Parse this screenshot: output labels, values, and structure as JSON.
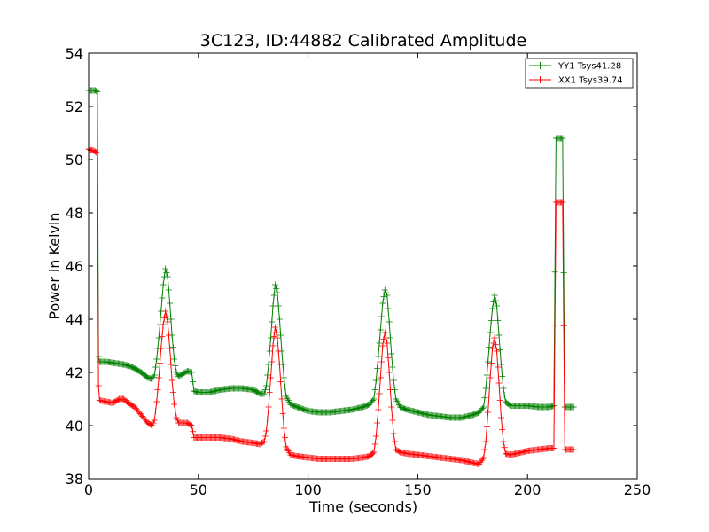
{
  "chart_data": {
    "type": "line",
    "title": "3C123, ID:44882 Calibrated Amplitude",
    "xlabel": "Time (seconds)",
    "ylabel": "Power in Kelvin",
    "xlim": [
      0,
      250
    ],
    "ylim": [
      38,
      54
    ],
    "xticks": [
      0,
      50,
      100,
      150,
      200,
      250
    ],
    "yticks": [
      38,
      40,
      42,
      44,
      46,
      48,
      50,
      52,
      54
    ],
    "grid": false,
    "legend_position": "top-right",
    "marker": "plus",
    "series": [
      {
        "name": "YY1 Tsys41.28",
        "color": "#008000",
        "points": [
          [
            0,
            52.6
          ],
          [
            1,
            52.6
          ],
          [
            2,
            52.6
          ],
          [
            3,
            52.6
          ],
          [
            4,
            52.55
          ],
          [
            4.5,
            42.6
          ],
          [
            5,
            42.4
          ],
          [
            8,
            42.4
          ],
          [
            12,
            42.35
          ],
          [
            16,
            42.3
          ],
          [
            20,
            42.2
          ],
          [
            24,
            42.0
          ],
          [
            27,
            41.8
          ],
          [
            29,
            41.75
          ],
          [
            30,
            41.9
          ],
          [
            31,
            42.5
          ],
          [
            32,
            43.3
          ],
          [
            33,
            44.3
          ],
          [
            34,
            45.3
          ],
          [
            35,
            45.9
          ],
          [
            36,
            45.6
          ],
          [
            37,
            44.6
          ],
          [
            38,
            43.4
          ],
          [
            39,
            42.5
          ],
          [
            40,
            42.0
          ],
          [
            41,
            41.85
          ],
          [
            43,
            41.95
          ],
          [
            45,
            42.05
          ],
          [
            47,
            42.0
          ],
          [
            48,
            41.3
          ],
          [
            50,
            41.25
          ],
          [
            55,
            41.25
          ],
          [
            60,
            41.35
          ],
          [
            65,
            41.4
          ],
          [
            70,
            41.4
          ],
          [
            75,
            41.35
          ],
          [
            78,
            41.2
          ],
          [
            80,
            41.2
          ],
          [
            81,
            41.5
          ],
          [
            82,
            42.3
          ],
          [
            83,
            43.3
          ],
          [
            84,
            44.5
          ],
          [
            85,
            45.3
          ],
          [
            86,
            45.0
          ],
          [
            87,
            44.0
          ],
          [
            88,
            42.8
          ],
          [
            89,
            41.8
          ],
          [
            90,
            41.1
          ],
          [
            92,
            40.8
          ],
          [
            95,
            40.7
          ],
          [
            100,
            40.55
          ],
          [
            105,
            40.5
          ],
          [
            110,
            40.5
          ],
          [
            115,
            40.55
          ],
          [
            120,
            40.6
          ],
          [
            125,
            40.7
          ],
          [
            128,
            40.8
          ],
          [
            130,
            41.0
          ],
          [
            131,
            41.7
          ],
          [
            132,
            42.6
          ],
          [
            133,
            43.6
          ],
          [
            134,
            44.6
          ],
          [
            135,
            45.1
          ],
          [
            136,
            44.9
          ],
          [
            137,
            43.9
          ],
          [
            138,
            42.7
          ],
          [
            139,
            41.7
          ],
          [
            140,
            41.0
          ],
          [
            142,
            40.7
          ],
          [
            145,
            40.6
          ],
          [
            150,
            40.5
          ],
          [
            155,
            40.4
          ],
          [
            160,
            40.35
          ],
          [
            165,
            40.3
          ],
          [
            170,
            40.3
          ],
          [
            175,
            40.4
          ],
          [
            178,
            40.5
          ],
          [
            180,
            40.7
          ],
          [
            181,
            41.4
          ],
          [
            182,
            42.4
          ],
          [
            183,
            43.5
          ],
          [
            184,
            44.4
          ],
          [
            185,
            44.9
          ],
          [
            186,
            44.5
          ],
          [
            187,
            43.4
          ],
          [
            188,
            42.3
          ],
          [
            189,
            41.4
          ],
          [
            190,
            40.9
          ],
          [
            192,
            40.75
          ],
          [
            195,
            40.75
          ],
          [
            200,
            40.75
          ],
          [
            205,
            40.7
          ],
          [
            210,
            40.7
          ],
          [
            212,
            40.75
          ],
          [
            213,
            50.8
          ],
          [
            214,
            50.8
          ],
          [
            215,
            50.8
          ],
          [
            216,
            50.8
          ],
          [
            217,
            40.7
          ],
          [
            218,
            40.7
          ],
          [
            220,
            40.7
          ],
          [
            221,
            40.7
          ]
        ]
      },
      {
        "name": "XX1 Tsys39.74",
        "color": "#ff0000",
        "points": [
          [
            0,
            50.4
          ],
          [
            1,
            50.35
          ],
          [
            2,
            50.35
          ],
          [
            3,
            50.3
          ],
          [
            4,
            50.25
          ],
          [
            4.5,
            41.5
          ],
          [
            5,
            40.95
          ],
          [
            8,
            40.9
          ],
          [
            11,
            40.85
          ],
          [
            14,
            41.0
          ],
          [
            16,
            41.0
          ],
          [
            18,
            40.85
          ],
          [
            21,
            40.7
          ],
          [
            24,
            40.4
          ],
          [
            27,
            40.1
          ],
          [
            29,
            40.0
          ],
          [
            30,
            40.2
          ],
          [
            31,
            40.9
          ],
          [
            32,
            41.8
          ],
          [
            33,
            42.9
          ],
          [
            34,
            43.8
          ],
          [
            35,
            44.3
          ],
          [
            36,
            43.9
          ],
          [
            37,
            42.9
          ],
          [
            38,
            41.7
          ],
          [
            39,
            40.8
          ],
          [
            40,
            40.3
          ],
          [
            41,
            40.1
          ],
          [
            43,
            40.1
          ],
          [
            45,
            40.1
          ],
          [
            47,
            40.0
          ],
          [
            48,
            39.55
          ],
          [
            50,
            39.55
          ],
          [
            55,
            39.55
          ],
          [
            60,
            39.55
          ],
          [
            65,
            39.5
          ],
          [
            70,
            39.4
          ],
          [
            75,
            39.35
          ],
          [
            78,
            39.3
          ],
          [
            80,
            39.4
          ],
          [
            81,
            39.8
          ],
          [
            82,
            40.7
          ],
          [
            83,
            41.8
          ],
          [
            84,
            43.0
          ],
          [
            85,
            43.7
          ],
          [
            86,
            43.3
          ],
          [
            87,
            42.3
          ],
          [
            88,
            41.0
          ],
          [
            89,
            39.9
          ],
          [
            90,
            39.2
          ],
          [
            92,
            38.9
          ],
          [
            95,
            38.85
          ],
          [
            100,
            38.8
          ],
          [
            105,
            38.75
          ],
          [
            110,
            38.75
          ],
          [
            115,
            38.75
          ],
          [
            120,
            38.75
          ],
          [
            125,
            38.8
          ],
          [
            128,
            38.85
          ],
          [
            130,
            39.0
          ],
          [
            131,
            39.6
          ],
          [
            132,
            40.6
          ],
          [
            133,
            41.8
          ],
          [
            134,
            43.0
          ],
          [
            135,
            43.5
          ],
          [
            136,
            43.1
          ],
          [
            137,
            42.0
          ],
          [
            138,
            40.7
          ],
          [
            139,
            39.7
          ],
          [
            140,
            39.1
          ],
          [
            142,
            39.0
          ],
          [
            145,
            38.95
          ],
          [
            150,
            38.9
          ],
          [
            155,
            38.85
          ],
          [
            160,
            38.8
          ],
          [
            165,
            38.75
          ],
          [
            170,
            38.7
          ],
          [
            175,
            38.6
          ],
          [
            178,
            38.55
          ],
          [
            180,
            38.8
          ],
          [
            181,
            39.4
          ],
          [
            182,
            40.5
          ],
          [
            183,
            41.8
          ],
          [
            184,
            42.9
          ],
          [
            185,
            43.3
          ],
          [
            186,
            42.8
          ],
          [
            187,
            41.6
          ],
          [
            188,
            40.3
          ],
          [
            189,
            39.4
          ],
          [
            190,
            38.95
          ],
          [
            192,
            38.9
          ],
          [
            195,
            38.95
          ],
          [
            200,
            39.05
          ],
          [
            205,
            39.1
          ],
          [
            210,
            39.15
          ],
          [
            212,
            39.15
          ],
          [
            213,
            48.4
          ],
          [
            214,
            48.4
          ],
          [
            215,
            48.4
          ],
          [
            216,
            48.4
          ],
          [
            217,
            39.1
          ],
          [
            218,
            39.1
          ],
          [
            220,
            39.1
          ],
          [
            221,
            39.1
          ]
        ]
      }
    ]
  }
}
